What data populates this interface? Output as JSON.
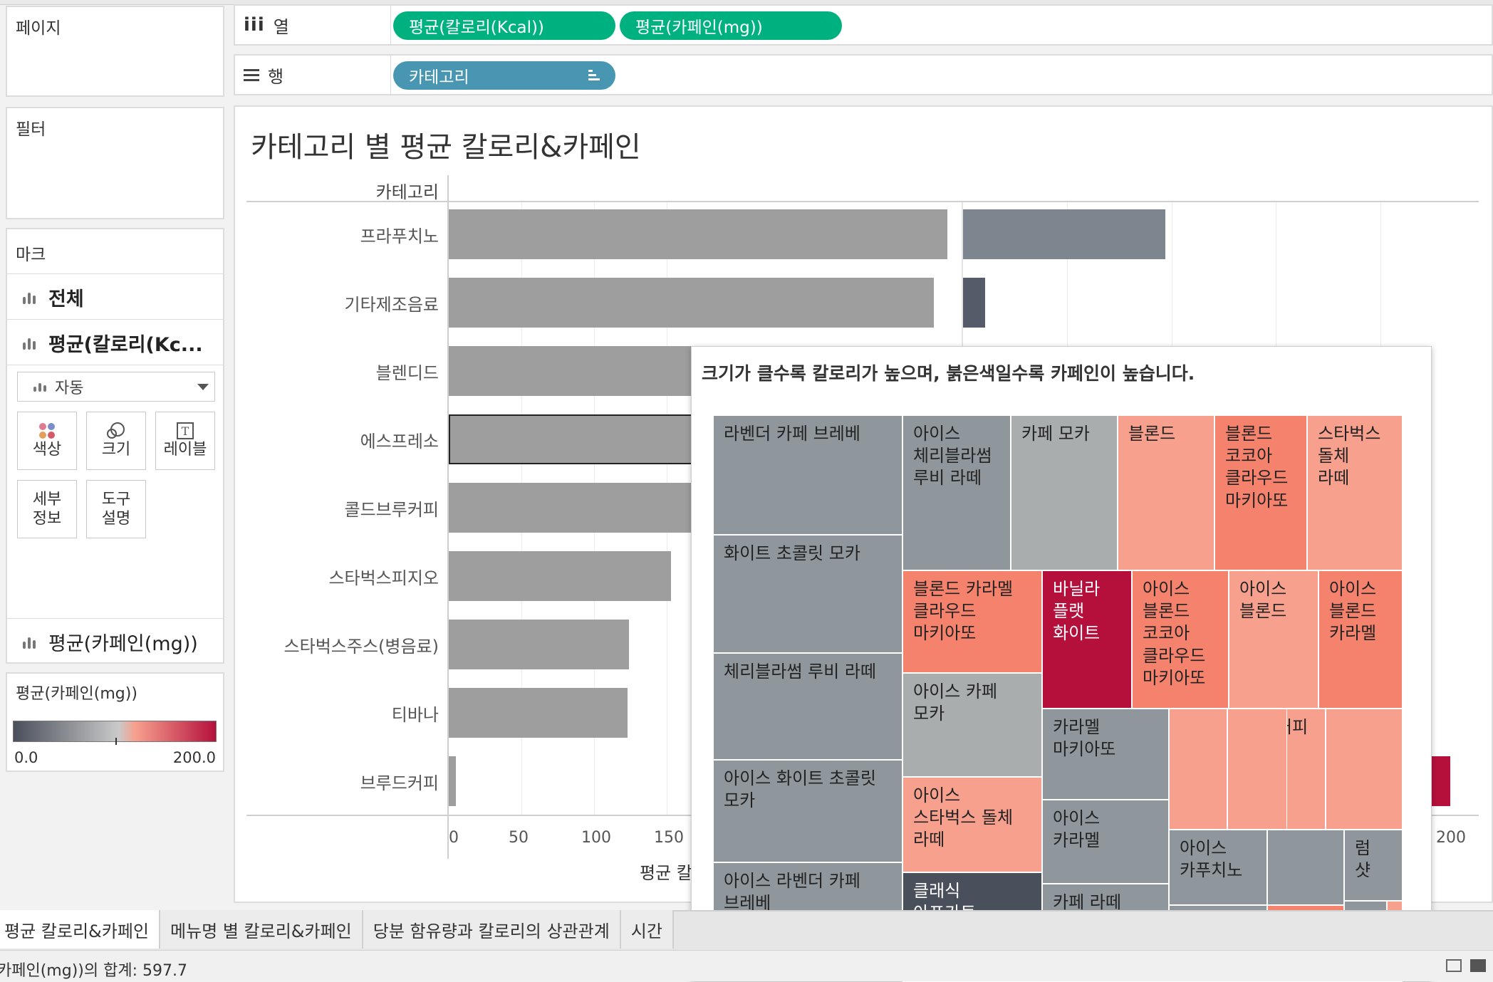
{
  "sidebar": {
    "pages_label": "페이지",
    "filters_label": "필터",
    "marks": {
      "title": "마크",
      "all_label": "전체",
      "calorie_label": "평균(칼로리(Kc...",
      "mark_type": "자동",
      "buttons": {
        "color": "색상",
        "size": "크기",
        "label": "레이블",
        "detail": "세부\n정보",
        "tooltip": "도구\n설명"
      },
      "caffeine_label": "평균(카페인(mg))"
    },
    "legend": {
      "title": "평균(카페인(mg))",
      "min": "0.0",
      "max": "200.0",
      "color_low": "#4a4f5c",
      "color_mid": "#c9c9c9",
      "color_high": "#b5103c"
    }
  },
  "shelves": {
    "columns_label": "열",
    "rows_label": "행",
    "column_pills": [
      "평균(칼로리(Kcal))",
      "평균(카페인(mg))"
    ],
    "row_pill": "카테고리"
  },
  "view": {
    "title": "카테고리 별 평균 칼로리&카페인",
    "category_header": "카테고리",
    "x_axis_label_fragment": "평균 칼"
  },
  "chart_data": {
    "type": "bar",
    "categories": [
      "프라푸치노",
      "기타제조음료",
      "블렌디드",
      "에스프레소",
      "콜드브루커피",
      "스타벅스피지오",
      "스타벅스주스(병음료)",
      "티바나",
      "브루드커피"
    ],
    "series": [
      {
        "name": "평균(칼로리(Kcal))",
        "values": [
          343,
          334,
          300,
          170,
          200,
          153,
          124,
          123,
          5
        ]
      },
      {
        "name": "평균(카페인(mg))",
        "values": [
          83,
          9,
          null,
          null,
          null,
          null,
          null,
          null,
          200
        ]
      }
    ],
    "x_ticks": [
      "0",
      "50",
      "100",
      "150"
    ],
    "x_tick_right": "200",
    "colors": {
      "calorie": "#9e9e9e",
      "caffeine_high": "#7d868e",
      "caffeine_low": "#555b69",
      "caffeine_max": "#b5103c"
    }
  },
  "tooltip": {
    "title": "크기가 클수록 칼로리가 높으며, 붉은색일수록 카페인이 높습니다.",
    "treemap": [
      {
        "label": "라벤더 카페 브레베",
        "color": "#8f979c"
      },
      {
        "label": "화이트 초콜릿 모카",
        "color": "#8f979c"
      },
      {
        "label": "체리블라썸 루비 라떼",
        "color": "#8f979c"
      },
      {
        "label": "아이스 화이트 초콜릿\n모카",
        "color": "#8f979c"
      },
      {
        "label": "아이스 라벤더 카페\n브레베",
        "color": "#8f979c"
      },
      {
        "label": "아이스\n체리블라썸\n루비 라떼",
        "color": "#8f979c"
      },
      {
        "label": "카페 모카",
        "color": "#a9adae"
      },
      {
        "label": "블론드",
        "color": "#f7a08e"
      },
      {
        "label": "블론드\n코코아\n클라우드\n마키아또",
        "color": "#f5826d"
      },
      {
        "label": "스타벅스\n돌체\n라떼",
        "color": "#f7a08e"
      },
      {
        "label": "블론드 카라멜\n클라우드\n마키아또",
        "color": "#f5826d"
      },
      {
        "label": "바닐라\n플랫\n화이트",
        "color": "#b5103c"
      },
      {
        "label": "아이스\n블론드\n코코아\n클라우드\n마키아또",
        "color": "#f5826d"
      },
      {
        "label": "아이스\n블론드",
        "color": "#f7a08e"
      },
      {
        "label": "아이스\n블론드\n카라멜",
        "color": "#f5826d"
      },
      {
        "label": "아이스 카페\n모카",
        "color": "#a9adae"
      },
      {
        "label": "아이스\n스타벅스 돌체\n라떼",
        "color": "#f7a08e"
      },
      {
        "label": "클래식\n아포가토",
        "color": "#4a4f5c"
      },
      {
        "label": "카라멜\n마키아또",
        "color": "#8f979c"
      },
      {
        "label": "아이스\n카라멜",
        "color": "#8f979c"
      },
      {
        "label": "카페 라떼",
        "color": "#8f979c"
      },
      {
        "label": "커피",
        "color": "#f7a08e"
      },
      {
        "label": "아이스\n카푸치노",
        "color": "#8f979c"
      },
      {
        "label": "럼\n샷",
        "color": "#8f979c"
      }
    ]
  },
  "tabs": [
    "평균 칼로리&카페인",
    "메뉴명 별 칼로리&카페인",
    "당분 함유량과 칼로리의 상관관계",
    "시간"
  ],
  "status": {
    "text": "카페인(mg))의 합계: 597.7"
  }
}
